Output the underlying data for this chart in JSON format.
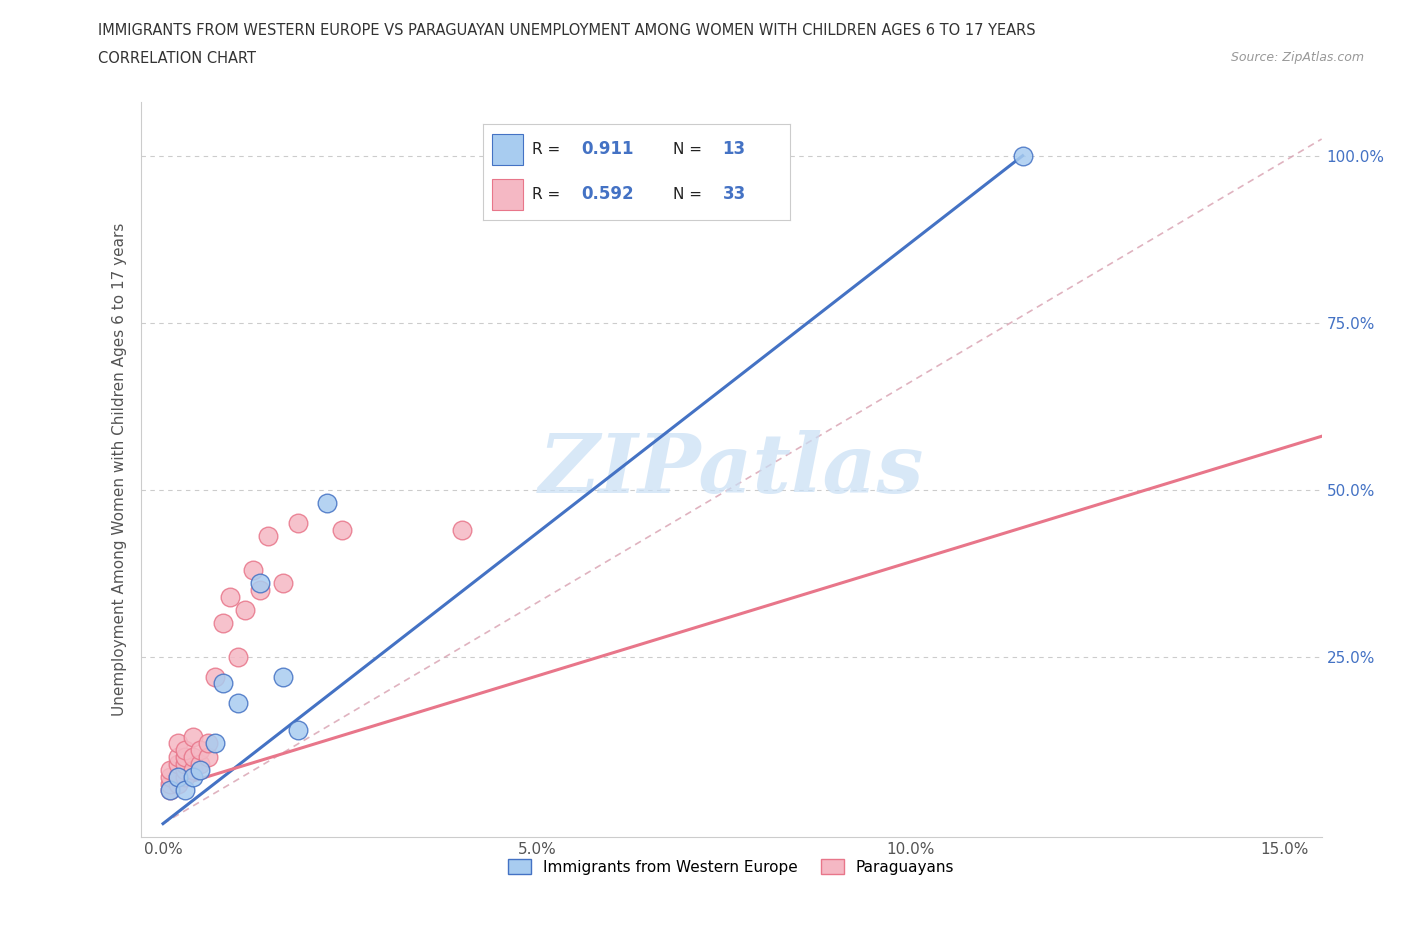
{
  "title_line1": "IMMIGRANTS FROM WESTERN EUROPE VS PARAGUAYAN UNEMPLOYMENT AMONG WOMEN WITH CHILDREN AGES 6 TO 17 YEARS",
  "title_line2": "CORRELATION CHART",
  "source": "Source: ZipAtlas.com",
  "ylabel": "Unemployment Among Women with Children Ages 6 to 17 years",
  "watermark": "ZIPatlas",
  "xlim": [
    -0.003,
    0.155
  ],
  "ylim": [
    -0.02,
    1.08
  ],
  "xtick_labels": [
    "0.0%",
    "5.0%",
    "10.0%",
    "15.0%"
  ],
  "xtick_values": [
    0.0,
    0.05,
    0.1,
    0.15
  ],
  "ytick_labels": [
    "25.0%",
    "50.0%",
    "75.0%",
    "100.0%"
  ],
  "ytick_values": [
    0.25,
    0.5,
    0.75,
    1.0
  ],
  "color_blue": "#A8CCF0",
  "color_pink": "#F5B8C4",
  "color_blue_line": "#4472C4",
  "color_pink_line": "#E8768A",
  "color_diag": "#D8A0B0",
  "blue_scatter_x": [
    0.001,
    0.002,
    0.003,
    0.004,
    0.005,
    0.007,
    0.008,
    0.01,
    0.013,
    0.016,
    0.018,
    0.022,
    0.115
  ],
  "blue_scatter_y": [
    0.05,
    0.07,
    0.05,
    0.07,
    0.08,
    0.12,
    0.21,
    0.18,
    0.36,
    0.22,
    0.14,
    0.48,
    1.0
  ],
  "pink_scatter_x": [
    0.001,
    0.001,
    0.001,
    0.001,
    0.002,
    0.002,
    0.002,
    0.002,
    0.002,
    0.003,
    0.003,
    0.003,
    0.003,
    0.003,
    0.004,
    0.004,
    0.004,
    0.005,
    0.005,
    0.006,
    0.006,
    0.007,
    0.008,
    0.009,
    0.01,
    0.011,
    0.012,
    0.013,
    0.014,
    0.016,
    0.018,
    0.024,
    0.04
  ],
  "pink_scatter_y": [
    0.05,
    0.06,
    0.07,
    0.08,
    0.06,
    0.07,
    0.09,
    0.1,
    0.12,
    0.07,
    0.08,
    0.09,
    0.1,
    0.11,
    0.08,
    0.1,
    0.13,
    0.09,
    0.11,
    0.1,
    0.12,
    0.22,
    0.3,
    0.34,
    0.25,
    0.32,
    0.38,
    0.35,
    0.43,
    0.36,
    0.45,
    0.44,
    0.44
  ],
  "blue_line_x": [
    0.0,
    0.115
  ],
  "blue_line_y": [
    0.0,
    1.0
  ],
  "pink_line_x": [
    0.0,
    0.155
  ],
  "pink_line_y": [
    0.05,
    0.58
  ],
  "diag_line_x": [
    0.0,
    0.155
  ],
  "diag_line_y": [
    0.0,
    1.025
  ],
  "legend_r1": "0.911",
  "legend_n1": "13",
  "legend_r2": "0.592",
  "legend_n2": "33"
}
